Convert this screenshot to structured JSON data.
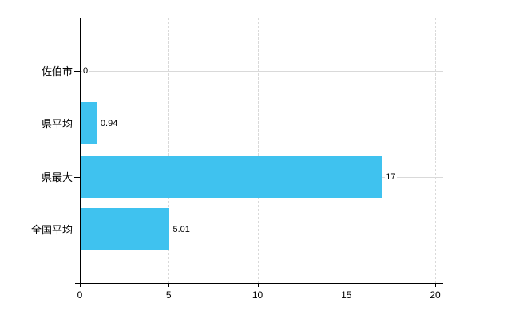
{
  "chart_data": {
    "type": "bar",
    "orientation": "horizontal",
    "title": "",
    "categories": [
      "佐伯市",
      "県平均",
      "県最大",
      "全国平均"
    ],
    "values": [
      0,
      0.94,
      17,
      5.01
    ],
    "value_labels": [
      "0",
      "0.94",
      "17",
      "5.01"
    ],
    "xlabel": "",
    "ylabel": "",
    "xlim": [
      0,
      20
    ],
    "x_ticks": [
      0,
      5,
      10,
      15,
      20
    ],
    "x_tick_labels": [
      "0",
      "5",
      "10",
      "15",
      "20"
    ],
    "grid": "dashed vertical gridline at each x tick, solid horizontal guide line at each category center, dashed top border",
    "legend": "none"
  },
  "colors": {
    "bar": "#3FC2EF",
    "axis": "#000000",
    "grid": "#D9D9D9",
    "text": "#000000",
    "background": "#FFFFFF"
  }
}
